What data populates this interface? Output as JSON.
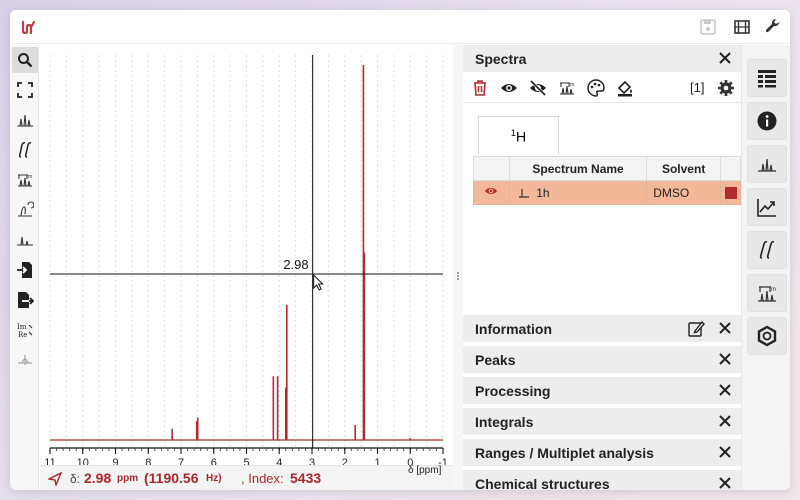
{
  "app": {
    "accent": "#a8262c"
  },
  "plot": {
    "crosshair_value": "2.98",
    "axis_unit_label": "δ [ppm]",
    "x_ticks": [
      "11",
      "10",
      "9",
      "8",
      "7",
      "6",
      "5",
      "4",
      "3",
      "2",
      "1",
      "0",
      "-1"
    ],
    "line_color": "#b22a2f"
  },
  "chart_data": {
    "type": "line",
    "xlabel": "δ [ppm]",
    "xlim": [
      11,
      -1
    ],
    "x_reversed": true,
    "grid": true,
    "peaks": [
      {
        "ppm": 7.27,
        "height": 0.03
      },
      {
        "ppm": 6.52,
        "height": 0.05
      },
      {
        "ppm": 6.49,
        "height": 0.06
      },
      {
        "ppm": 4.18,
        "height": 0.17
      },
      {
        "ppm": 4.05,
        "height": 0.17
      },
      {
        "ppm": 3.8,
        "height": 0.14
      },
      {
        "ppm": 3.77,
        "height": 0.36
      },
      {
        "ppm": 1.68,
        "height": 0.04
      },
      {
        "ppm": 1.43,
        "height": 1.0
      },
      {
        "ppm": 1.4,
        "height": 0.5
      },
      {
        "ppm": 0.0,
        "height": 0.005
      }
    ]
  },
  "status": {
    "delta_label": "δ:",
    "delta_value": "2.98",
    "delta_unit": "ppm",
    "hz_value": "(1190.56",
    "hz_unit": "Hz)",
    "index_label": ", Index:",
    "index_value": "5433",
    "axis_label": "δ [ppm]"
  },
  "spectra_panel": {
    "title": "Spectra",
    "count": "[1]",
    "tab_label": "H",
    "tab_sup": "1",
    "columns": [
      "",
      "Spectrum Name",
      "Solvent",
      ""
    ],
    "rows": [
      {
        "name": "1h",
        "solvent": "DMSO",
        "color": "#b22a2f"
      }
    ]
  },
  "collapsed_panels": [
    {
      "title": "Information"
    },
    {
      "title": "Peaks"
    },
    {
      "title": "Processing"
    },
    {
      "title": "Integrals"
    },
    {
      "title": "Ranges / Multiplet analysis"
    },
    {
      "title": "Chemical structures"
    }
  ],
  "left_tools": [
    "zoom-icon",
    "full-screen-icon",
    "peak-picking-icon",
    "integral-icon",
    "multiplet-icon",
    "phase-icon",
    "baseline-icon",
    "import-icon",
    "export-icon",
    "real-imaginary-icon",
    "apodization-icon"
  ],
  "side_tabs": [
    "spectra-list-icon",
    "information-icon",
    "peaks-icon",
    "processing-icon",
    "integrals-icon",
    "ranges-icon",
    "structures-icon"
  ]
}
